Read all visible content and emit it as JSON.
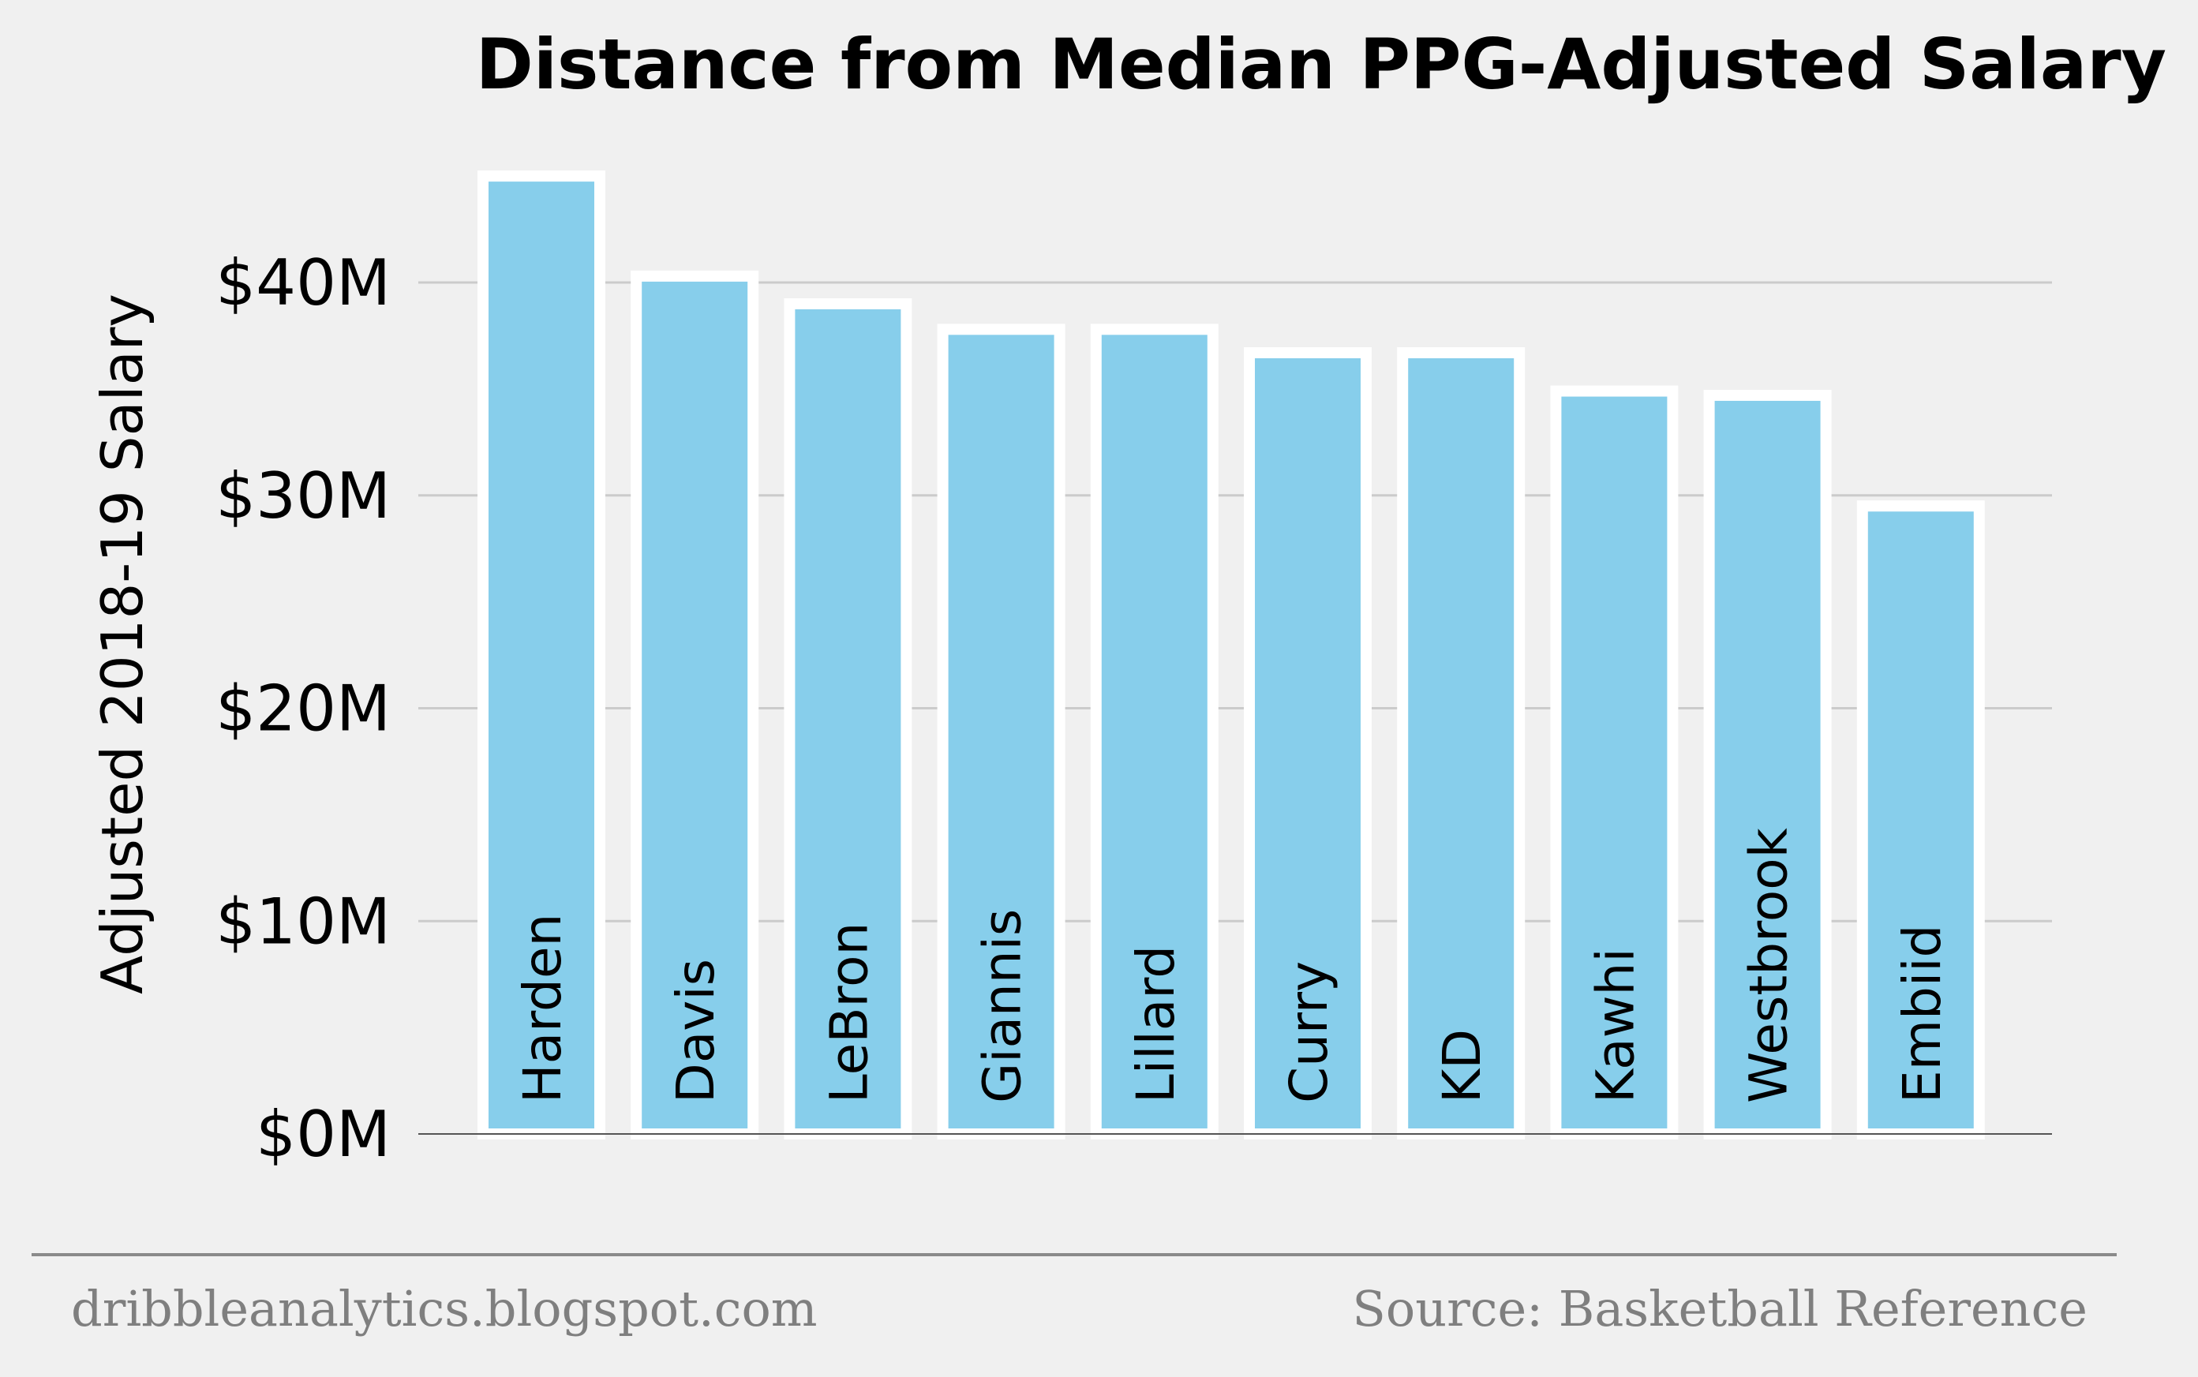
{
  "chart_data": {
    "type": "bar",
    "title": "Distance from Median PPG-Adjusted Salary",
    "ylabel": "Adjusted 2018-19 Salary",
    "xlabel": "",
    "ylim": [
      0,
      45
    ],
    "yticks": [
      0,
      10,
      20,
      30,
      40
    ],
    "ytick_labels": [
      "$0M",
      "$10M",
      "$20M",
      "$30M",
      "$40M"
    ],
    "grid": true,
    "categories": [
      "Harden",
      "Davis",
      "LeBron",
      "Giannis",
      "Lillard",
      "Curry",
      "KD",
      "Kawhi",
      "Westbrook",
      "Embiid"
    ],
    "values": [
      45.0,
      40.3,
      39.0,
      37.8,
      37.8,
      36.7,
      36.7,
      34.9,
      34.7,
      29.5
    ],
    "colors": {
      "bar": "#87ceeb",
      "bar_edge": "#ffffff",
      "grid": "#cbcbcb",
      "background": "#f0f0f0",
      "footer_text": "#7f7f7f"
    }
  },
  "footer": {
    "left": "dribbleanalytics.blogspot.com",
    "right": "Source: Basketball Reference"
  }
}
